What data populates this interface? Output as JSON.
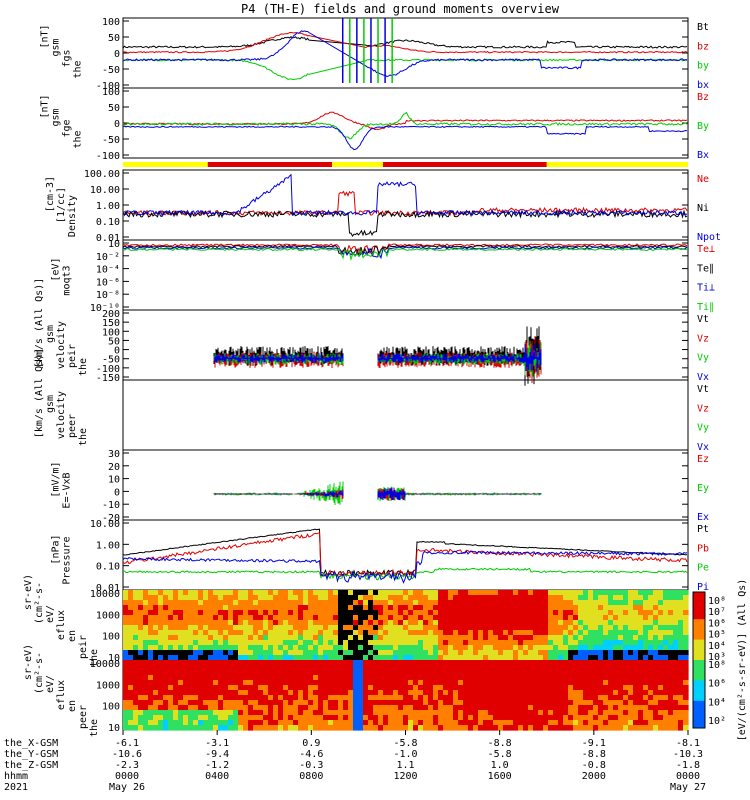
{
  "title": "P4 (TH-E) fields and ground moments overview",
  "colors": {
    "black": "#000000",
    "red": "#e00000",
    "green": "#00cc00",
    "blue": "#0000e0",
    "yellow": "#ffff00"
  },
  "chart_data": {
    "type": "line",
    "title": "P4 (TH-E) fields and ground moments overview",
    "panels": [
      {
        "id": "fgs_btot",
        "ylabel": [
          "the",
          "fgs",
          "gsm",
          "[nT]"
        ],
        "yticks": [
          "100",
          "50",
          "0",
          "-50",
          "-100"
        ],
        "legend": [
          "Bt",
          "bz",
          "by",
          "bx"
        ],
        "legend_colors": [
          "#000000",
          "#e00000",
          "#00cc00",
          "#0000e0"
        ]
      },
      {
        "id": "fge",
        "ylabel": [
          "the",
          "fge",
          "gsm",
          "[nT]"
        ],
        "yticks": [
          "100",
          "50",
          "0",
          "-50",
          "-100"
        ],
        "legend": [
          "Bz",
          "By",
          "Bx"
        ],
        "legend_colors": [
          "#e00000",
          "#00cc00",
          "#0000e0"
        ]
      },
      {
        "id": "density",
        "ylabel": [
          "Density",
          "[1/cc]",
          "[cm-3]"
        ],
        "yticks": [
          "100.00",
          "10.00",
          "1.00",
          "0.10",
          "0.01"
        ],
        "legend": [
          "Ne",
          "Ni",
          "Npot"
        ],
        "legend_colors": [
          "#e00000",
          "#000000",
          "#0000e0"
        ]
      },
      {
        "id": "temp",
        "ylabel": [
          "moqt3",
          "[eV]"
        ],
        "yticks": [
          "10",
          "10⁻²",
          "10⁻⁴",
          "10⁻⁶",
          "10⁻⁸",
          "10⁻¹⁰"
        ],
        "legend": [
          "Te⊥",
          "Te∥",
          "Ti⊥",
          "Ti∥"
        ],
        "legend_colors": [
          "#e00000",
          "#000000",
          "#0000e0",
          "#00cc00"
        ]
      },
      {
        "id": "peir_vel",
        "ylabel": [
          "the",
          "peir",
          "velocity",
          "gsm",
          "[km/s (All Qs)]"
        ],
        "yticks": [
          "200",
          "150",
          "100",
          "50",
          "0",
          "-50",
          "-100",
          "-150"
        ],
        "legend": [
          "Vt",
          "Vz",
          "Vy",
          "Vx"
        ],
        "legend_colors": [
          "#000000",
          "#e00000",
          "#00cc00",
          "#0000e0"
        ]
      },
      {
        "id": "peer_vel",
        "ylabel": [
          "the",
          "peer",
          "velocity",
          "gsm",
          "[km/s (All Qs)]"
        ],
        "yticks": [],
        "legend": [
          "Vt",
          "Vz",
          "Vy",
          "Vx"
        ],
        "legend_colors": [
          "#000000",
          "#e00000",
          "#00cc00",
          "#0000e0"
        ]
      },
      {
        "id": "efield",
        "ylabel": [
          "E=-VxB",
          "[mV/m]"
        ],
        "yticks": [
          "30",
          "20",
          "10",
          "0",
          "-10",
          "-20"
        ],
        "legend": [
          "Ez",
          "Ey",
          "Ex"
        ],
        "legend_colors": [
          "#e00000",
          "#00cc00",
          "#0000e0"
        ]
      },
      {
        "id": "pressure",
        "ylabel": [
          "Pressure",
          "[nPa]"
        ],
        "yticks": [
          "10.00",
          "1.00",
          "0.10",
          "0.01"
        ],
        "legend": [
          "Pt",
          "Pb",
          "Pe",
          "Pi"
        ],
        "legend_colors": [
          "#000000",
          "#e00000",
          "#00cc00",
          "#0000e0"
        ]
      },
      {
        "id": "peir_spec",
        "ylabel": [
          "the",
          "peir",
          "en",
          "eflux",
          "eV/",
          "(cm²-s-",
          "sr-eV)"
        ],
        "yticks": [
          "10000",
          "1000",
          "100",
          "10"
        ],
        "colorbar": [
          "10⁸",
          "10⁷",
          "10⁶",
          "10⁵",
          "10⁴",
          "10³"
        ]
      },
      {
        "id": "peer_spec",
        "ylabel": [
          "the",
          "peer",
          "en",
          "eflux",
          "eV/",
          "(cm²-s-",
          "sr-eV)"
        ],
        "yticks": [
          "10000",
          "1000",
          "100",
          "10"
        ],
        "colorbar": [
          "10⁸",
          "10⁶",
          "10⁴",
          "10²"
        ]
      }
    ],
    "colorbar_label": "[eV/(cm²-s-sr-eV)] (All Qs)",
    "x_ticks": [
      {
        "x": "-6.1",
        "y": "-10.6",
        "z": "-2.3",
        "hhmm": "0000",
        "date": "May 26"
      },
      {
        "x": "-3.1",
        "y": "-9.4",
        "z": "-1.2",
        "hhmm": "0400",
        "date": ""
      },
      {
        "x": "0.9",
        "y": "-4.6",
        "z": "-0.3",
        "hhmm": "0800",
        "date": ""
      },
      {
        "x": "-5.8",
        "y": "-1.0",
        "z": "1.1",
        "hhmm": "1200",
        "date": ""
      },
      {
        "x": "-8.8",
        "y": "-5.8",
        "z": "1.0",
        "hhmm": "1600",
        "date": ""
      },
      {
        "x": "-9.1",
        "y": "-8.8",
        "z": "-0.8",
        "hhmm": "2000",
        "date": ""
      },
      {
        "x": "-8.1",
        "y": "-10.3",
        "z": "-1.8",
        "hhmm": "0000",
        "date": "May 27"
      }
    ],
    "x_row_labels": [
      "the_X-GSM",
      "the_Y-GSM",
      "the_Z-GSM",
      "hhmm",
      "2021"
    ]
  }
}
